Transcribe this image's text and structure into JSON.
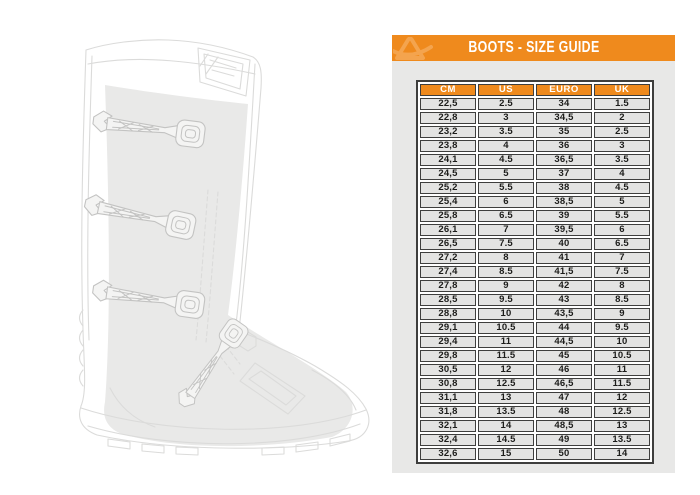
{
  "banner": {
    "title": "BOOTS - SIZE GUIDE",
    "logo_icon": "acerbis-logo"
  },
  "colors": {
    "accent_orange": "#ef8a1d",
    "logo_light_orange": "#f4a44e",
    "panel_background": "#e8e8e7",
    "cell_background": "#e3e3e2",
    "table_border": "#3e3e3d",
    "text_dark": "#1d1d1b",
    "boot_line": "#dbdbda",
    "boot_buckle_line": "#c3c3c2",
    "boot_shade": "#e9e9e8"
  },
  "illustration": {
    "name": "motocross-boot-line-drawing",
    "buckle_count": 4
  },
  "chart_data": {
    "type": "table",
    "title": "BOOTS - SIZE GUIDE",
    "columns": [
      "CM",
      "US",
      "EURO",
      "UK"
    ],
    "rows": [
      [
        "22,5",
        "2.5",
        "34",
        "1.5"
      ],
      [
        "22,8",
        "3",
        "34,5",
        "2"
      ],
      [
        "23,2",
        "3.5",
        "35",
        "2.5"
      ],
      [
        "23,8",
        "4",
        "36",
        "3"
      ],
      [
        "24,1",
        "4.5",
        "36,5",
        "3.5"
      ],
      [
        "24,5",
        "5",
        "37",
        "4"
      ],
      [
        "25,2",
        "5.5",
        "38",
        "4.5"
      ],
      [
        "25,4",
        "6",
        "38,5",
        "5"
      ],
      [
        "25,8",
        "6.5",
        "39",
        "5.5"
      ],
      [
        "26,1",
        "7",
        "39,5",
        "6"
      ],
      [
        "26,5",
        "7.5",
        "40",
        "6.5"
      ],
      [
        "27,2",
        "8",
        "41",
        "7"
      ],
      [
        "27,4",
        "8.5",
        "41,5",
        "7.5"
      ],
      [
        "27,8",
        "9",
        "42",
        "8"
      ],
      [
        "28,5",
        "9.5",
        "43",
        "8.5"
      ],
      [
        "28,8",
        "10",
        "43,5",
        "9"
      ],
      [
        "29,1",
        "10.5",
        "44",
        "9.5"
      ],
      [
        "29,4",
        "11",
        "44,5",
        "10"
      ],
      [
        "29,8",
        "11.5",
        "45",
        "10.5"
      ],
      [
        "30,5",
        "12",
        "46",
        "11"
      ],
      [
        "30,8",
        "12.5",
        "46,5",
        "11.5"
      ],
      [
        "31,1",
        "13",
        "47",
        "12"
      ],
      [
        "31,8",
        "13.5",
        "48",
        "12.5"
      ],
      [
        "32,1",
        "14",
        "48,5",
        "13"
      ],
      [
        "32,4",
        "14.5",
        "49",
        "13.5"
      ],
      [
        "32,6",
        "15",
        "50",
        "14"
      ]
    ]
  }
}
